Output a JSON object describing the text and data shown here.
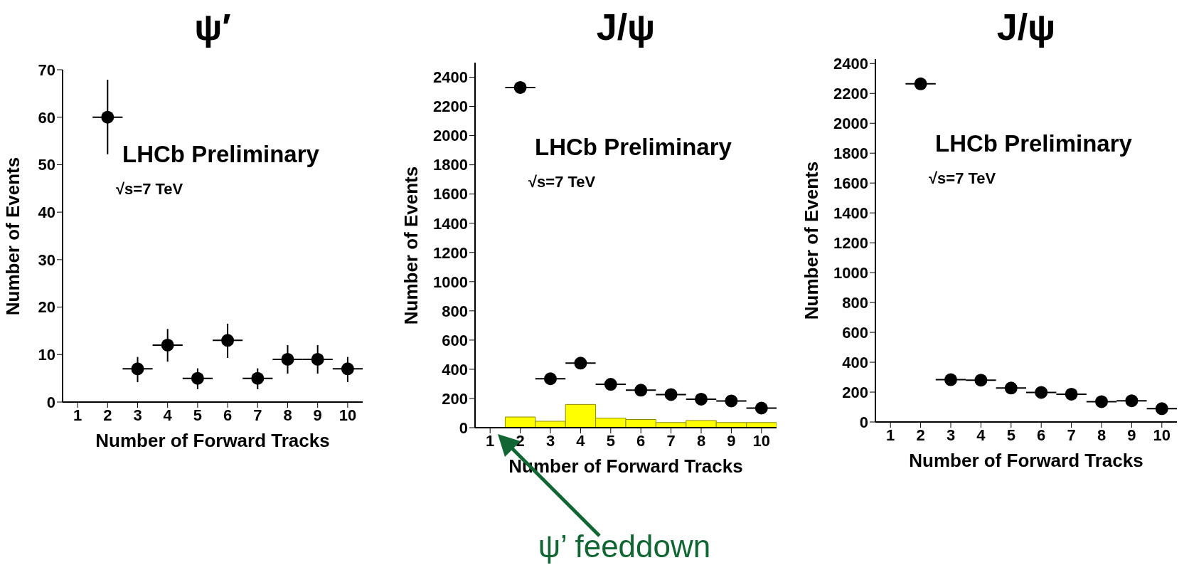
{
  "chart_data": [
    {
      "type": "scatter",
      "title": "ψ′",
      "xlabel": "Number of Forward Tracks",
      "ylabel": "Number of Events",
      "xlim": [
        0.5,
        10.5
      ],
      "xticks": [
        1,
        2,
        3,
        4,
        5,
        6,
        7,
        8,
        9,
        10
      ],
      "ylim": [
        0,
        70
      ],
      "yticks": [
        0,
        10,
        20,
        30,
        40,
        50,
        60,
        70
      ],
      "marker": "circle",
      "annotations": [
        "LHCb Preliminary",
        "√s=7 TeV"
      ],
      "series": [
        {
          "type": "scatter",
          "color": "#000000",
          "x": [
            2,
            3,
            4,
            5,
            6,
            7,
            8,
            9,
            10
          ],
          "values": [
            60,
            7,
            12,
            5,
            13,
            5,
            9,
            9,
            7
          ],
          "errors": [
            [
              52.2,
              67.9
            ],
            [
              4.2,
              9.5
            ],
            [
              8.5,
              15.4
            ],
            [
              2.7,
              7.1
            ],
            [
              9.3,
              16.5
            ],
            [
              2.7,
              7.1
            ],
            [
              6,
              12
            ],
            [
              6,
              12
            ],
            [
              4.2,
              9.5
            ]
          ],
          "xerrors": [
            0.5,
            0.5,
            0.5,
            0.5,
            0.5,
            0.5,
            0.5,
            0.5,
            0.5
          ]
        }
      ]
    },
    {
      "type": "scatter",
      "title": "J/ψ",
      "xlabel": "Number of Forward Tracks",
      "ylabel": "Number of Events",
      "xlim": [
        0.5,
        10.5
      ],
      "xticks": [
        1,
        2,
        3,
        4,
        5,
        6,
        7,
        8,
        9,
        10
      ],
      "ylim": [
        0,
        2500
      ],
      "yticks": [
        0,
        200,
        400,
        600,
        800,
        1000,
        1200,
        1400,
        1600,
        1800,
        2000,
        2200,
        2400
      ],
      "marker": "circle",
      "annotations": [
        "LHCb Preliminary",
        "√s=7 TeV",
        "ψ’ feeddown"
      ],
      "series": [
        {
          "type": "histogram",
          "color": "#ffff00",
          "bins": [
            0.5,
            1.5,
            2.5,
            3.5,
            4.5,
            5.5,
            6.5,
            7.5,
            8.5,
            9.5,
            10.5
          ],
          "values": [
            0,
            73,
            44,
            159,
            66,
            56,
            35,
            49,
            35,
            35
          ]
        },
        {
          "type": "scatter",
          "color": "#000000",
          "x": [
            2,
            3,
            4,
            5,
            6,
            7,
            8,
            9,
            10
          ],
          "values": [
            2330,
            335,
            442,
            297,
            257,
            227,
            195,
            183,
            134
          ],
          "xerrors": [
            0.5,
            0.5,
            0.5,
            0.5,
            0.5,
            0.5,
            0.5,
            0.5,
            0.5
          ]
        }
      ]
    },
    {
      "type": "scatter",
      "title": "J/ψ",
      "xlabel": "Number of Forward Tracks",
      "ylabel": "Number of Events",
      "xlim": [
        0.5,
        10.5
      ],
      "xticks": [
        1,
        2,
        3,
        4,
        5,
        6,
        7,
        8,
        9,
        10
      ],
      "ylim": [
        0,
        2430
      ],
      "yticks": [
        0,
        200,
        400,
        600,
        800,
        1000,
        1200,
        1400,
        1600,
        1800,
        2000,
        2200,
        2400
      ],
      "marker": "circle",
      "annotations": [
        "LHCb Preliminary",
        "√s=7 TeV"
      ],
      "series": [
        {
          "type": "scatter",
          "color": "#000000",
          "x": [
            2,
            3,
            4,
            5,
            6,
            7,
            8,
            9,
            10
          ],
          "values": [
            2264,
            283,
            280,
            227,
            198,
            186,
            136,
            142,
            89
          ],
          "xerrors": [
            0.5,
            0.5,
            0.5,
            0.5,
            0.5,
            0.5,
            0.5,
            0.5,
            0.5
          ]
        }
      ]
    }
  ]
}
